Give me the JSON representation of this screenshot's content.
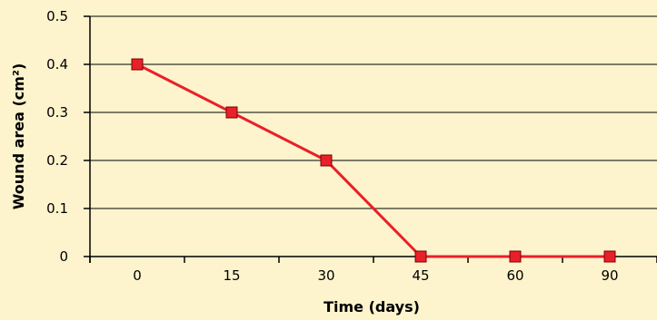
{
  "chart_data": {
    "type": "line",
    "categories": [
      "0",
      "15",
      "30",
      "45",
      "60",
      "90"
    ],
    "series": [
      {
        "values": [
          0.4,
          0.3,
          0.2,
          0.0,
          0.0,
          0.0
        ]
      }
    ],
    "xlabel": "Time (days)",
    "ylabel": "Wound area (cm²)",
    "ylim": [
      0,
      0.5
    ],
    "yticks": [
      "0",
      "0.1",
      "0.2",
      "0.3",
      "0.4",
      "0.5"
    ],
    "grid": "horizontal",
    "line_color": "#e8202a",
    "marker_color": "#e8202a",
    "marker_border": "#7a0000",
    "background": "#fdf3cc"
  }
}
